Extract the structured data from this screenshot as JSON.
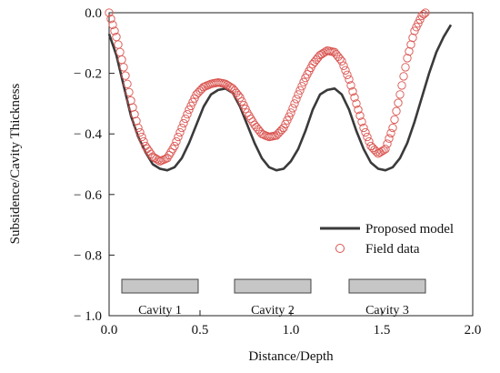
{
  "chart_data": {
    "type": "scatter",
    "xlabel": "Distance/Depth",
    "ylabel": "Subsidence/Cavity Thickness",
    "xlim": [
      0.0,
      2.0
    ],
    "ylim": [
      -1.0,
      0.0
    ],
    "x_ticks": [
      {
        "value": 0.0,
        "label": "0.0"
      },
      {
        "value": 0.5,
        "label": "0.5"
      },
      {
        "value": 1.0,
        "label": "1.0"
      },
      {
        "value": 1.5,
        "label": "1.5"
      },
      {
        "value": 2.0,
        "label": "2.0"
      }
    ],
    "y_ticks": [
      {
        "value": 0.0,
        "label": "0.0"
      },
      {
        "value": -0.2,
        "label": "− 0.2"
      },
      {
        "value": -0.4,
        "label": "− 0.4"
      },
      {
        "value": -0.6,
        "label": "− 0.6"
      },
      {
        "value": -0.8,
        "label": "− 0.8"
      },
      {
        "value": -1.0,
        "label": "− 1.0"
      }
    ],
    "grid": false,
    "legend_position": "bottom-right",
    "series": [
      {
        "name": "Proposed model",
        "kind": "line",
        "color": "#3a3a3a",
        "points": [
          [
            0.0,
            -0.07
          ],
          [
            0.04,
            -0.14
          ],
          [
            0.08,
            -0.24
          ],
          [
            0.12,
            -0.34
          ],
          [
            0.16,
            -0.41
          ],
          [
            0.2,
            -0.46
          ],
          [
            0.24,
            -0.5
          ],
          [
            0.28,
            -0.515
          ],
          [
            0.32,
            -0.52
          ],
          [
            0.36,
            -0.51
          ],
          [
            0.4,
            -0.48
          ],
          [
            0.44,
            -0.43
          ],
          [
            0.48,
            -0.37
          ],
          [
            0.52,
            -0.31
          ],
          [
            0.56,
            -0.27
          ],
          [
            0.6,
            -0.255
          ],
          [
            0.64,
            -0.25
          ],
          [
            0.68,
            -0.265
          ],
          [
            0.72,
            -0.31
          ],
          [
            0.76,
            -0.37
          ],
          [
            0.8,
            -0.43
          ],
          [
            0.84,
            -0.48
          ],
          [
            0.88,
            -0.51
          ],
          [
            0.92,
            -0.52
          ],
          [
            0.96,
            -0.515
          ],
          [
            1.0,
            -0.49
          ],
          [
            1.04,
            -0.45
          ],
          [
            1.08,
            -0.39
          ],
          [
            1.12,
            -0.32
          ],
          [
            1.16,
            -0.27
          ],
          [
            1.2,
            -0.255
          ],
          [
            1.24,
            -0.25
          ],
          [
            1.28,
            -0.27
          ],
          [
            1.32,
            -0.32
          ],
          [
            1.36,
            -0.39
          ],
          [
            1.4,
            -0.45
          ],
          [
            1.44,
            -0.495
          ],
          [
            1.48,
            -0.515
          ],
          [
            1.52,
            -0.52
          ],
          [
            1.56,
            -0.51
          ],
          [
            1.6,
            -0.48
          ],
          [
            1.64,
            -0.43
          ],
          [
            1.68,
            -0.36
          ],
          [
            1.72,
            -0.28
          ],
          [
            1.76,
            -0.2
          ],
          [
            1.8,
            -0.13
          ],
          [
            1.84,
            -0.08
          ],
          [
            1.88,
            -0.04
          ]
        ]
      },
      {
        "name": "Field data",
        "kind": "scatter",
        "color": "#d9534f",
        "x_start": 0.0,
        "x_end": 1.74,
        "x_step": 0.01,
        "knots": [
          [
            0.0,
            0.0
          ],
          [
            0.04,
            -0.08
          ],
          [
            0.08,
            -0.18
          ],
          [
            0.12,
            -0.29
          ],
          [
            0.16,
            -0.38
          ],
          [
            0.2,
            -0.44
          ],
          [
            0.24,
            -0.475
          ],
          [
            0.28,
            -0.49
          ],
          [
            0.32,
            -0.48
          ],
          [
            0.36,
            -0.44
          ],
          [
            0.4,
            -0.38
          ],
          [
            0.44,
            -0.32
          ],
          [
            0.48,
            -0.27
          ],
          [
            0.52,
            -0.245
          ],
          [
            0.56,
            -0.235
          ],
          [
            0.6,
            -0.23
          ],
          [
            0.64,
            -0.235
          ],
          [
            0.68,
            -0.25
          ],
          [
            0.72,
            -0.28
          ],
          [
            0.76,
            -0.33
          ],
          [
            0.8,
            -0.37
          ],
          [
            0.84,
            -0.4
          ],
          [
            0.88,
            -0.41
          ],
          [
            0.92,
            -0.405
          ],
          [
            0.96,
            -0.38
          ],
          [
            1.0,
            -0.33
          ],
          [
            1.04,
            -0.27
          ],
          [
            1.08,
            -0.215
          ],
          [
            1.12,
            -0.17
          ],
          [
            1.16,
            -0.14
          ],
          [
            1.2,
            -0.125
          ],
          [
            1.24,
            -0.13
          ],
          [
            1.28,
            -0.16
          ],
          [
            1.32,
            -0.22
          ],
          [
            1.36,
            -0.3
          ],
          [
            1.4,
            -0.38
          ],
          [
            1.44,
            -0.44
          ],
          [
            1.48,
            -0.465
          ],
          [
            1.52,
            -0.45
          ],
          [
            1.56,
            -0.38
          ],
          [
            1.6,
            -0.27
          ],
          [
            1.64,
            -0.15
          ],
          [
            1.68,
            -0.06
          ],
          [
            1.72,
            -0.01
          ],
          [
            1.74,
            0.0
          ]
        ]
      }
    ],
    "cavities": [
      {
        "label": "Cavity 1",
        "x_start": 0.07,
        "x_end": 0.49,
        "y_top": -0.88,
        "y_bottom": -0.925
      },
      {
        "label": "Cavity 2",
        "x_start": 0.69,
        "x_end": 1.11,
        "y_top": -0.88,
        "y_bottom": -0.925
      },
      {
        "label": "Cavity 3",
        "x_start": 1.32,
        "x_end": 1.74,
        "y_top": -0.88,
        "y_bottom": -0.925
      }
    ],
    "cavity_color": "#c6c6c6"
  }
}
